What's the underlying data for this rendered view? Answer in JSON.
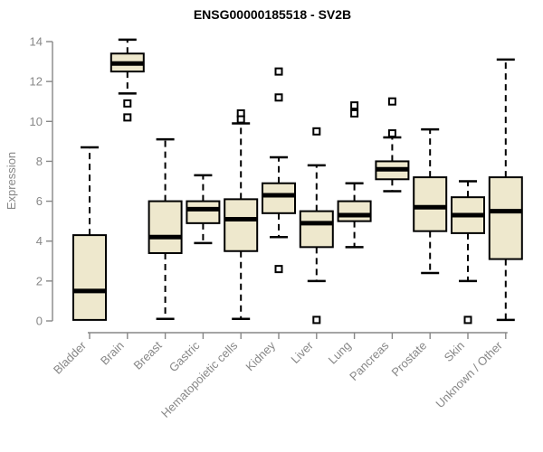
{
  "title": "ENSG00000185518 - SV2B",
  "chart_data": {
    "type": "boxplot",
    "title": "ENSG00000185518 - SV2B",
    "xlabel": "",
    "ylabel": "Expression",
    "ylim": [
      0,
      14
    ],
    "yticks": [
      0,
      2,
      4,
      6,
      8,
      10,
      12,
      14
    ],
    "grid": false,
    "legend": false,
    "categories": [
      "Bladder",
      "Brain",
      "Breast",
      "Gastric",
      "Hematopoietic cells",
      "Kidney",
      "Liver",
      "Lung",
      "Pancreas",
      "Prostate",
      "Skin",
      "Unknown / Other"
    ],
    "series": [
      {
        "name": "Bladder",
        "low": 0.05,
        "q1": 0.05,
        "median": 1.5,
        "q3": 4.3,
        "high": 8.7,
        "outliers": []
      },
      {
        "name": "Brain",
        "low": 11.4,
        "q1": 12.5,
        "median": 12.9,
        "q3": 13.4,
        "high": 14.1,
        "outliers": [
          10.9,
          10.2
        ]
      },
      {
        "name": "Breast",
        "low": 0.1,
        "q1": 3.4,
        "median": 4.2,
        "q3": 6.0,
        "high": 9.1,
        "outliers": []
      },
      {
        "name": "Gastric",
        "low": 3.9,
        "q1": 4.9,
        "median": 5.6,
        "q3": 6.0,
        "high": 7.3,
        "outliers": []
      },
      {
        "name": "Hematopoietic cells",
        "low": 0.1,
        "q1": 3.5,
        "median": 5.1,
        "q3": 6.1,
        "high": 9.9,
        "outliers": [
          10.4,
          10.1
        ]
      },
      {
        "name": "Kidney",
        "low": 4.2,
        "q1": 5.4,
        "median": 6.3,
        "q3": 6.9,
        "high": 8.2,
        "outliers": [
          12.5,
          11.2,
          2.6
        ]
      },
      {
        "name": "Liver",
        "low": 2.0,
        "q1": 3.7,
        "median": 4.9,
        "q3": 5.5,
        "high": 7.8,
        "outliers": [
          9.5,
          0.05
        ]
      },
      {
        "name": "Lung",
        "low": 3.7,
        "q1": 5.0,
        "median": 5.3,
        "q3": 6.0,
        "high": 6.9,
        "outliers": [
          10.8,
          10.4
        ]
      },
      {
        "name": "Pancreas",
        "low": 6.5,
        "q1": 7.1,
        "median": 7.6,
        "q3": 8.0,
        "high": 9.2,
        "outliers": [
          11.0,
          9.4
        ]
      },
      {
        "name": "Prostate",
        "low": 2.4,
        "q1": 4.5,
        "median": 5.7,
        "q3": 7.2,
        "high": 9.6,
        "outliers": []
      },
      {
        "name": "Skin",
        "low": 2.0,
        "q1": 4.4,
        "median": 5.3,
        "q3": 6.2,
        "high": 7.0,
        "outliers": [
          0.05
        ]
      },
      {
        "name": "Unknown / Other",
        "low": 0.05,
        "q1": 3.1,
        "median": 5.5,
        "q3": 7.2,
        "high": 13.1,
        "outliers": []
      }
    ],
    "colors": {
      "box_fill": "#EEE8CD",
      "box_stroke": "#000000",
      "median": "#000000",
      "whisker": "#000000",
      "outlier_fill": "#FFFFFF",
      "outlier_stroke": "#000000",
      "axis": "#878787",
      "title": "#000000",
      "background": "#FFFFFF"
    }
  }
}
